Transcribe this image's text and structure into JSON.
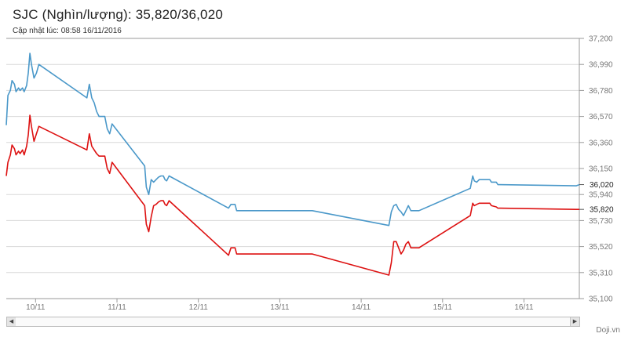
{
  "header": {
    "title": "SJC (Nghìn/lượng): 35,820/36,020",
    "updated": "Cập nhật lúc: 08:58 16/11/2016"
  },
  "scrollbar": {
    "left_arrow": "◀",
    "right_arrow": "▶"
  },
  "credit": "Doji.vn",
  "colors": {
    "sell": "#4a98c9",
    "buy": "#dd1111",
    "grid": "#d8d8d8",
    "axis": "#9a9a9a"
  },
  "chart_data": {
    "type": "line",
    "title": "",
    "xlabel": "",
    "ylabel": "",
    "x_unit": "day of November 2016",
    "xlim": [
      9.64,
      16.68
    ],
    "ylim": [
      35100,
      37200
    ],
    "y_ticks": [
      35100,
      35310,
      35520,
      35730,
      35940,
      36150,
      36360,
      36570,
      36780,
      36990,
      37200
    ],
    "y_tick_labels": [
      "35,100",
      "35,310",
      "35,520",
      "35,730",
      "35,940",
      "36,150",
      "36,360",
      "36,570",
      "36,780",
      "36,990",
      "37,200"
    ],
    "x_ticks": [
      10,
      11,
      12,
      13,
      14,
      15,
      16
    ],
    "x_tick_labels": [
      "10/11",
      "11/11",
      "12/11",
      "13/11",
      "14/11",
      "15/11",
      "16/11"
    ],
    "grid": true,
    "end_labels": [
      "36,020",
      "35,820"
    ],
    "series": [
      {
        "color": "#4a98c9",
        "points": [
          [
            9.64,
            36500
          ],
          [
            9.66,
            36740
          ],
          [
            9.69,
            36780
          ],
          [
            9.71,
            36860
          ],
          [
            9.74,
            36830
          ],
          [
            9.76,
            36770
          ],
          [
            9.79,
            36800
          ],
          [
            9.81,
            36780
          ],
          [
            9.84,
            36800
          ],
          [
            9.86,
            36770
          ],
          [
            9.89,
            36820
          ],
          [
            9.91,
            36920
          ],
          [
            9.93,
            37080
          ],
          [
            9.95,
            36990
          ],
          [
            9.98,
            36880
          ],
          [
            10.01,
            36920
          ],
          [
            10.04,
            36990
          ],
          [
            10.63,
            36720
          ],
          [
            10.66,
            36830
          ],
          [
            10.69,
            36720
          ],
          [
            10.72,
            36680
          ],
          [
            10.75,
            36610
          ],
          [
            10.78,
            36570
          ],
          [
            10.85,
            36570
          ],
          [
            10.88,
            36470
          ],
          [
            10.91,
            36430
          ],
          [
            10.94,
            36510
          ],
          [
            11.34,
            36170
          ],
          [
            11.36,
            36000
          ],
          [
            11.39,
            35940
          ],
          [
            11.42,
            36060
          ],
          [
            11.45,
            36040
          ],
          [
            11.48,
            36060
          ],
          [
            11.51,
            36080
          ],
          [
            11.54,
            36090
          ],
          [
            11.57,
            36090
          ],
          [
            11.59,
            36060
          ],
          [
            11.61,
            36050
          ],
          [
            11.64,
            36090
          ],
          [
            12.37,
            35830
          ],
          [
            12.4,
            35860
          ],
          [
            12.45,
            35860
          ],
          [
            12.47,
            35810
          ],
          [
            13.4,
            35810
          ],
          [
            14.34,
            35690
          ],
          [
            14.37,
            35800
          ],
          [
            14.4,
            35850
          ],
          [
            14.43,
            35860
          ],
          [
            14.46,
            35820
          ],
          [
            14.49,
            35800
          ],
          [
            14.52,
            35770
          ],
          [
            14.55,
            35810
          ],
          [
            14.58,
            35850
          ],
          [
            14.61,
            35810
          ],
          [
            14.71,
            35810
          ],
          [
            15.34,
            35990
          ],
          [
            15.37,
            36090
          ],
          [
            15.39,
            36050
          ],
          [
            15.42,
            36040
          ],
          [
            15.45,
            36060
          ],
          [
            15.58,
            36060
          ],
          [
            15.6,
            36040
          ],
          [
            15.66,
            36040
          ],
          [
            15.68,
            36020
          ],
          [
            16.64,
            36010
          ],
          [
            16.68,
            36020
          ]
        ]
      },
      {
        "color": "#dd1111",
        "points": [
          [
            9.64,
            36090
          ],
          [
            9.66,
            36200
          ],
          [
            9.69,
            36260
          ],
          [
            9.71,
            36340
          ],
          [
            9.74,
            36310
          ],
          [
            9.76,
            36260
          ],
          [
            9.79,
            36290
          ],
          [
            9.81,
            36270
          ],
          [
            9.84,
            36300
          ],
          [
            9.86,
            36260
          ],
          [
            9.89,
            36330
          ],
          [
            9.91,
            36420
          ],
          [
            9.93,
            36580
          ],
          [
            9.95,
            36490
          ],
          [
            9.98,
            36370
          ],
          [
            10.01,
            36430
          ],
          [
            10.04,
            36490
          ],
          [
            10.63,
            36300
          ],
          [
            10.66,
            36430
          ],
          [
            10.69,
            36330
          ],
          [
            10.72,
            36300
          ],
          [
            10.75,
            36270
          ],
          [
            10.78,
            36250
          ],
          [
            10.85,
            36250
          ],
          [
            10.88,
            36150
          ],
          [
            10.91,
            36110
          ],
          [
            10.94,
            36200
          ],
          [
            11.34,
            35850
          ],
          [
            11.36,
            35700
          ],
          [
            11.39,
            35640
          ],
          [
            11.42,
            35760
          ],
          [
            11.45,
            35850
          ],
          [
            11.48,
            35860
          ],
          [
            11.51,
            35880
          ],
          [
            11.54,
            35890
          ],
          [
            11.57,
            35890
          ],
          [
            11.59,
            35860
          ],
          [
            11.61,
            35850
          ],
          [
            11.64,
            35890
          ],
          [
            12.37,
            35450
          ],
          [
            12.4,
            35510
          ],
          [
            12.45,
            35510
          ],
          [
            12.47,
            35460
          ],
          [
            13.4,
            35460
          ],
          [
            14.34,
            35290
          ],
          [
            14.37,
            35390
          ],
          [
            14.4,
            35560
          ],
          [
            14.43,
            35560
          ],
          [
            14.46,
            35510
          ],
          [
            14.49,
            35460
          ],
          [
            14.52,
            35490
          ],
          [
            14.55,
            35540
          ],
          [
            14.58,
            35560
          ],
          [
            14.61,
            35510
          ],
          [
            14.71,
            35510
          ],
          [
            15.34,
            35770
          ],
          [
            15.37,
            35870
          ],
          [
            15.39,
            35850
          ],
          [
            15.42,
            35860
          ],
          [
            15.45,
            35870
          ],
          [
            15.58,
            35870
          ],
          [
            15.6,
            35850
          ],
          [
            15.66,
            35840
          ],
          [
            15.68,
            35830
          ],
          [
            16.64,
            35820
          ],
          [
            16.68,
            35820
          ]
        ]
      }
    ]
  }
}
